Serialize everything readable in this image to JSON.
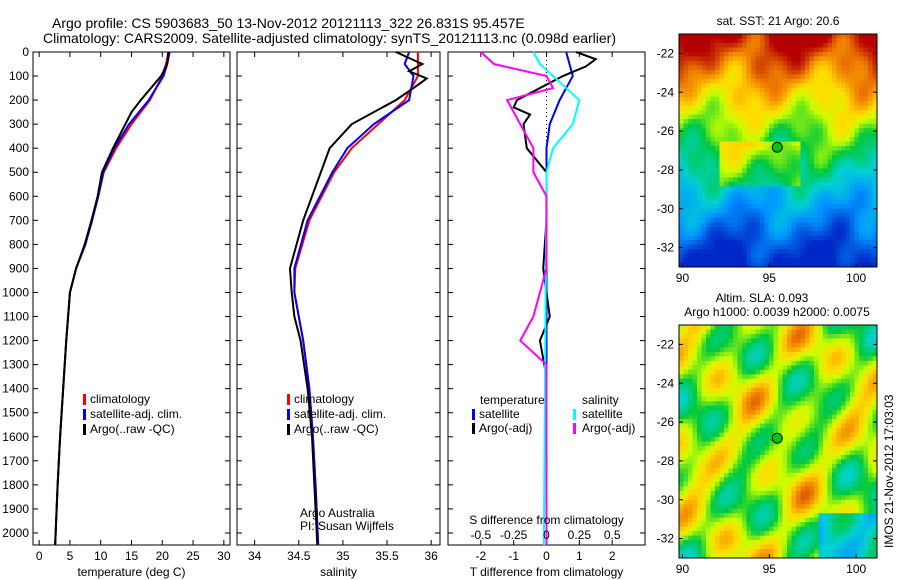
{
  "title_line1": "Argo profile: CS 5903683_50 13-Nov-2012 20121113_322 26.831S 95.457E",
  "title_line2": "Climatology: CARS2009. Satellite-adjusted climatology: synTS_20121113.nc (0.098d earlier)",
  "footer": "IMOS 21-Nov-2012 17:03:03",
  "colors": {
    "clim": "#ff0000",
    "sat": "#0000ff",
    "argo": "#000000",
    "s_sat": "#00ffff",
    "s_argo": "#ff00ff"
  },
  "chart_data": [
    {
      "type": "line",
      "name": "temperature",
      "xlabel": "temperature (deg C)",
      "ylabel": "depth",
      "xlim": [
        -1,
        31
      ],
      "ylim": [
        2050,
        0
      ],
      "xticks": [
        0,
        5,
        10,
        15,
        20,
        25,
        30
      ],
      "yticks": [
        0,
        100,
        200,
        300,
        400,
        500,
        600,
        700,
        800,
        900,
        1000,
        1100,
        1200,
        1300,
        1400,
        1500,
        1600,
        1700,
        1800,
        1900,
        2000
      ],
      "legend": [
        "climatology",
        "satellite-adj. clim.",
        "Argo(..raw -QC)"
      ],
      "series": [
        {
          "name": "climatology",
          "color": "#ff0000",
          "points": [
            [
              0,
              21
            ],
            [
              50,
              20.6
            ],
            [
              100,
              20
            ],
            [
              200,
              18
            ],
            [
              300,
              15
            ],
            [
              400,
              12.5
            ],
            [
              500,
              10.5
            ],
            [
              600,
              9.6
            ],
            [
              700,
              8.6
            ],
            [
              800,
              7.5
            ],
            [
              900,
              6
            ],
            [
              1000,
              5
            ],
            [
              1200,
              4.4
            ],
            [
              1400,
              3.9
            ],
            [
              1600,
              3.4
            ],
            [
              1800,
              3
            ],
            [
              2050,
              2.6
            ]
          ]
        },
        {
          "name": "satellite-adj. clim.",
          "color": "#0000ff",
          "points": [
            [
              0,
              21.2
            ],
            [
              50,
              20.8
            ],
            [
              100,
              20.2
            ],
            [
              200,
              17.8
            ],
            [
              300,
              14.6
            ],
            [
              400,
              12.2
            ],
            [
              500,
              10.4
            ],
            [
              600,
              9.6
            ],
            [
              700,
              8.6
            ],
            [
              800,
              7.5
            ],
            [
              900,
              6
            ],
            [
              1000,
              5
            ],
            [
              1200,
              4.4
            ],
            [
              1400,
              3.9
            ],
            [
              1600,
              3.4
            ],
            [
              1800,
              3
            ],
            [
              2050,
              2.6
            ]
          ]
        },
        {
          "name": "Argo(..raw -QC)",
          "color": "#000000",
          "points": [
            [
              0,
              21
            ],
            [
              50,
              20.8
            ],
            [
              100,
              19.8
            ],
            [
              200,
              16.5
            ],
            [
              250,
              15
            ],
            [
              300,
              14
            ],
            [
              400,
              12
            ],
            [
              500,
              10.2
            ],
            [
              600,
              9.5
            ],
            [
              700,
              8.5
            ],
            [
              800,
              7.4
            ],
            [
              900,
              6
            ],
            [
              1000,
              5
            ],
            [
              1200,
              4.4
            ],
            [
              1400,
              3.9
            ],
            [
              1600,
              3.4
            ],
            [
              1800,
              3
            ],
            [
              2050,
              2.6
            ]
          ]
        }
      ]
    },
    {
      "type": "line",
      "name": "salinity",
      "xlabel": "salinity",
      "xlim": [
        33.8,
        36.1
      ],
      "ylim": [
        2050,
        0
      ],
      "xticks": [
        34,
        34.5,
        35,
        35.5,
        36
      ],
      "legend": [
        "climatology",
        "satellite-adj. clim.",
        "Argo(..raw -QC)"
      ],
      "annotation": [
        "Argo Australia",
        "PI: Susan Wijffels"
      ],
      "series": [
        {
          "name": "climatology",
          "color": "#ff0000",
          "points": [
            [
              0,
              35.85
            ],
            [
              100,
              35.85
            ],
            [
              200,
              35.7
            ],
            [
              300,
              35.4
            ],
            [
              400,
              35.1
            ],
            [
              500,
              34.9
            ],
            [
              700,
              34.62
            ],
            [
              900,
              34.46
            ],
            [
              1000,
              34.45
            ],
            [
              1200,
              34.55
            ],
            [
              1400,
              34.62
            ],
            [
              1600,
              34.66
            ],
            [
              1800,
              34.69
            ],
            [
              2050,
              34.72
            ]
          ]
        },
        {
          "name": "satellite-adj. clim.",
          "color": "#0000ff",
          "points": [
            [
              0,
              35.75
            ],
            [
              50,
              35.7
            ],
            [
              100,
              35.8
            ],
            [
              200,
              35.75
            ],
            [
              300,
              35.35
            ],
            [
              400,
              35.05
            ],
            [
              500,
              34.88
            ],
            [
              700,
              34.6
            ],
            [
              900,
              34.45
            ],
            [
              1000,
              34.45
            ],
            [
              1200,
              34.55
            ],
            [
              1400,
              34.62
            ],
            [
              1600,
              34.66
            ],
            [
              1800,
              34.69
            ],
            [
              2050,
              34.72
            ]
          ]
        },
        {
          "name": "Argo(..raw -QC)",
          "color": "#000000",
          "points": [
            [
              0,
              35.6
            ],
            [
              50,
              35.9
            ],
            [
              80,
              35.75
            ],
            [
              110,
              35.95
            ],
            [
              150,
              35.8
            ],
            [
              200,
              35.6
            ],
            [
              300,
              35.1
            ],
            [
              400,
              34.85
            ],
            [
              500,
              34.75
            ],
            [
              700,
              34.55
            ],
            [
              900,
              34.4
            ],
            [
              1000,
              34.42
            ],
            [
              1100,
              34.45
            ],
            [
              1200,
              34.52
            ],
            [
              1400,
              34.6
            ],
            [
              1600,
              34.65
            ],
            [
              2050,
              34.71
            ]
          ]
        }
      ]
    },
    {
      "type": "line",
      "name": "differences",
      "xlabel": "T difference from climatology",
      "x2label": "S difference from climatology",
      "xlim": [
        -3,
        3
      ],
      "ylim": [
        2050,
        0
      ],
      "xticks": [
        -2,
        -1,
        0,
        1,
        2
      ],
      "x2ticks": [
        -0.5,
        -0.25,
        0,
        0.25,
        0.5
      ],
      "legend_t": [
        "temperature",
        "satellite",
        "Argo(-adj)"
      ],
      "legend_s": [
        "salinity",
        "satellite",
        "Argo(-adj)"
      ],
      "series": [
        {
          "name": "T satellite",
          "color": "#0000ff",
          "points": [
            [
              0,
              0.6
            ],
            [
              50,
              0.7
            ],
            [
              100,
              0.8
            ],
            [
              150,
              0.6
            ],
            [
              200,
              0.4
            ],
            [
              300,
              0.1
            ],
            [
              400,
              0
            ],
            [
              2050,
              0
            ]
          ]
        },
        {
          "name": "T Argo(-adj)",
          "color": "#000000",
          "points": [
            [
              0,
              0.9
            ],
            [
              30,
              1.5
            ],
            [
              60,
              1.2
            ],
            [
              100,
              0.5
            ],
            [
              150,
              -0.2
            ],
            [
              200,
              -0.9
            ],
            [
              230,
              -1
            ],
            [
              260,
              -0.5
            ],
            [
              300,
              -0.7
            ],
            [
              400,
              -0.6
            ],
            [
              500,
              0
            ],
            [
              700,
              0
            ],
            [
              900,
              -0.1
            ],
            [
              1100,
              0.1
            ],
            [
              1200,
              -0.2
            ],
            [
              1350,
              0
            ],
            [
              2050,
              0
            ]
          ]
        },
        {
          "name": "S satellite",
          "color": "#00ffff",
          "points": [
            [
              0,
              -0.1
            ],
            [
              50,
              -0.05
            ],
            [
              100,
              0.05
            ],
            [
              150,
              0.15
            ],
            [
              200,
              0.25
            ],
            [
              300,
              0.2
            ],
            [
              400,
              0.05
            ],
            [
              500,
              0
            ],
            [
              2050,
              -0.02
            ]
          ]
        },
        {
          "name": "S Argo(-adj)",
          "color": "#ff00ff",
          "points": [
            [
              0,
              -0.5
            ],
            [
              50,
              -0.4
            ],
            [
              100,
              0
            ],
            [
              150,
              0.05
            ],
            [
              200,
              -0.3
            ],
            [
              300,
              -0.2
            ],
            [
              400,
              -0.1
            ],
            [
              500,
              -0.1
            ],
            [
              600,
              0
            ],
            [
              900,
              0
            ],
            [
              1100,
              -0.1
            ],
            [
              1200,
              -0.2
            ],
            [
              1300,
              0
            ],
            [
              2050,
              0
            ]
          ]
        }
      ]
    },
    {
      "type": "heatmap",
      "name": "sst-map",
      "title": "sat. SST: 21 Argo: 20.6",
      "xticks": [
        90,
        95,
        100
      ],
      "yticks": [
        -22,
        -24,
        -26,
        -28,
        -30,
        -32
      ],
      "xlim": [
        89.8,
        101.2
      ],
      "ylim": [
        -33,
        -21
      ],
      "marker": [
        95.457,
        -26.831
      ]
    },
    {
      "type": "heatmap",
      "name": "sla-map",
      "title": "Altim. SLA: 0.093",
      "subtitle": "Argo h1000: 0.0039 h2000: 0.0075",
      "xticks": [
        90,
        95,
        100
      ],
      "yticks": [
        -22,
        -24,
        -26,
        -28,
        -30,
        -32
      ],
      "xlim": [
        89.8,
        101.2
      ],
      "ylim": [
        -33,
        -21
      ],
      "marker": [
        95.457,
        -26.831
      ]
    }
  ]
}
